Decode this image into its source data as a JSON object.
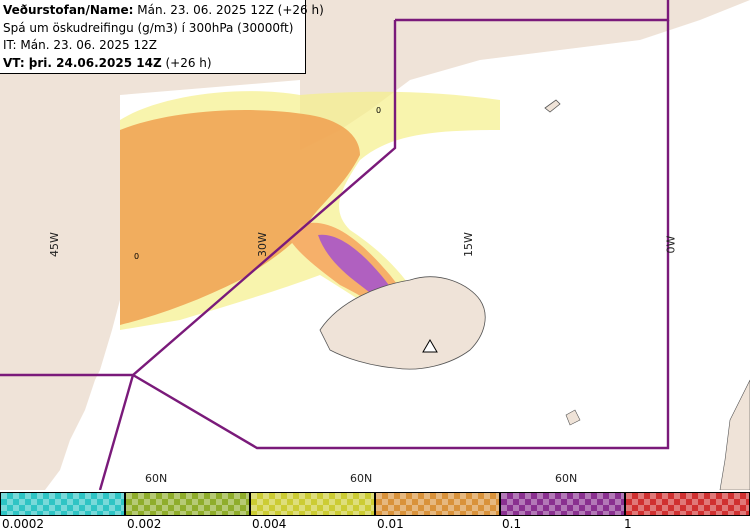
{
  "header": {
    "line1_label": "Veðurstofan/Name:",
    "line1_value": " Mán. 23. 06. 2025 12Z (+26 h)",
    "line2": "Spá um öskudreifingu (g/m3) í 300hPa (30000ft)",
    "line3": "IT: Mán. 23. 06. 2025 12Z",
    "line4_label": "VT: þri. 24.06.2025 14Z",
    "line4_value": " (+26 h)"
  },
  "graticule": {
    "longitudes": [
      "45W",
      "30W",
      "15W",
      "0W"
    ],
    "latitudes": [
      "60N",
      "60N",
      "60N"
    ]
  },
  "markers": [
    "0",
    "0"
  ],
  "legend": {
    "ticks": [
      "0.0002",
      "0.002",
      "0.004",
      "0.01",
      "0.1",
      "1"
    ],
    "colors": [
      "#2ec4c4",
      "#8fad2a",
      "#cccc33",
      "#d9923a",
      "#8a3090",
      "#d03030"
    ]
  },
  "colors": {
    "land": "#efe3d8",
    "sea": "#ffffff",
    "boundary": "#7a1a7a",
    "ash_low": "#f6b06a",
    "ash_mid": "#f0a050",
    "ash_high": "#b060c0",
    "ash_light": "#f5f08a"
  }
}
